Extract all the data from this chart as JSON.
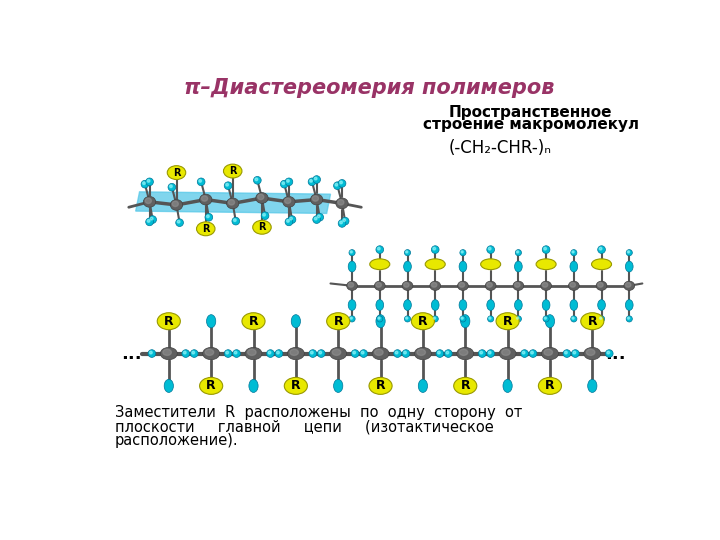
{
  "title": "π–Диастереомерия полимеров",
  "title_color": "#993366",
  "subtitle1": "Пространственное",
  "subtitle2": "строение макромолекул",
  "formula": "(-CH₂-CHR-)ₙ",
  "bottom_text1": "Заместители  R  расположены  по  одну  сторону  от",
  "bottom_text2": "плоскости     главной     цепи     (изотактическое",
  "bottom_text3": "расположение).",
  "bg_color": "#ffffff",
  "cyan_color": "#00bcd4",
  "gray_dark": "#404040",
  "gray_mid": "#606060",
  "gray_light": "#909090",
  "yellow_color": "#e8e800",
  "plane_color": "#56c8e8"
}
